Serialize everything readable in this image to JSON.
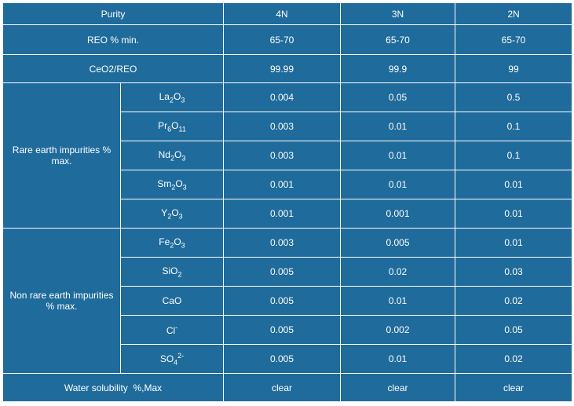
{
  "table": {
    "header": [
      "Purity",
      "4N",
      "3N",
      "2N"
    ],
    "rows": [
      {
        "label": "REO % min.",
        "values": [
          "65-70",
          "65-70",
          "65-70"
        ]
      },
      {
        "label": "CeO2/REO",
        "values": [
          "99.99",
          "99.9",
          "99"
        ]
      }
    ],
    "groups": [
      {
        "label": "Rare earth impurities % max.",
        "items": [
          {
            "formula": [
              {
                "t": "La"
              },
              {
                "sub": "2"
              },
              {
                "t": "O"
              },
              {
                "sub": "3"
              }
            ],
            "values": [
              "0.004",
              "0.05",
              "0.5"
            ]
          },
          {
            "formula": [
              {
                "t": "Pr"
              },
              {
                "sub": "6"
              },
              {
                "t": "O"
              },
              {
                "sub": "11"
              }
            ],
            "values": [
              "0.003",
              "0.01",
              "0.1"
            ]
          },
          {
            "formula": [
              {
                "t": "Nd"
              },
              {
                "sub": "2"
              },
              {
                "t": "O"
              },
              {
                "sub": "3"
              }
            ],
            "values": [
              "0.003",
              "0.01",
              "0.1"
            ]
          },
          {
            "formula": [
              {
                "t": "Sm"
              },
              {
                "sub": "2"
              },
              {
                "t": "O"
              },
              {
                "sub": "3"
              }
            ],
            "values": [
              "0.001",
              "0.01",
              "0.01"
            ]
          },
          {
            "formula": [
              {
                "t": "Y"
              },
              {
                "sub": "2"
              },
              {
                "t": "O"
              },
              {
                "sub": "3"
              }
            ],
            "values": [
              "0.001",
              "0.001",
              "0.01"
            ]
          }
        ]
      },
      {
        "label": "Non rare earth impurities % max.",
        "items": [
          {
            "formula": [
              {
                "t": "Fe"
              },
              {
                "sub": "2"
              },
              {
                "t": "O"
              },
              {
                "sub": "3"
              }
            ],
            "values": [
              "0.003",
              "0.005",
              "0.01"
            ]
          },
          {
            "formula": [
              {
                "t": "SiO"
              },
              {
                "sub": "2"
              }
            ],
            "values": [
              "0.005",
              "0.02",
              "0.03"
            ]
          },
          {
            "formula": [
              {
                "t": "CaO"
              }
            ],
            "values": [
              "0.005",
              "0.01",
              "0.02"
            ]
          },
          {
            "formula": [
              {
                "t": "Cl"
              },
              {
                "sup": "-"
              }
            ],
            "values": [
              "0.005",
              "0.002",
              "0.05"
            ]
          },
          {
            "formula": [
              {
                "t": "SO"
              },
              {
                "sub": "4"
              },
              {
                "sup": "2-"
              }
            ],
            "values": [
              "0.005",
              "0.01",
              "0.02"
            ]
          }
        ]
      }
    ],
    "footer": {
      "label": "Water solubility  %,Max",
      "values": [
        "clear",
        "clear",
        "clear"
      ]
    }
  }
}
